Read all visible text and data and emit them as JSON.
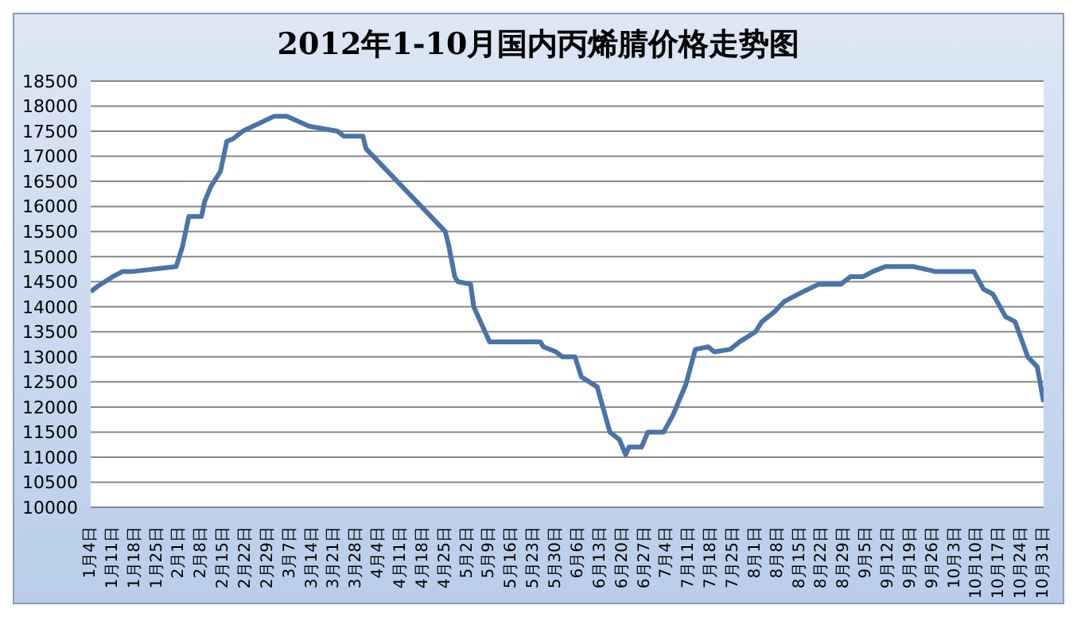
{
  "chart_data": {
    "type": "line",
    "title": "2012年1-10月国内丙烯腈价格走势图",
    "x": [
      "2012-01-04",
      "2012-01-06",
      "2012-01-11",
      "2012-01-14",
      "2012-01-17",
      "2012-01-31",
      "2012-02-02",
      "2012-02-04",
      "2012-02-08",
      "2012-02-09",
      "2012-02-11",
      "2012-02-14",
      "2012-02-16",
      "2012-02-18",
      "2012-02-21",
      "2012-03-02",
      "2012-03-06",
      "2012-03-13",
      "2012-03-22",
      "2012-03-24",
      "2012-03-30",
      "2012-03-31",
      "2012-04-25",
      "2012-04-26",
      "2012-04-28",
      "2012-04-29",
      "2012-05-03",
      "2012-05-04",
      "2012-05-09",
      "2012-05-25",
      "2012-05-26",
      "2012-05-30",
      "2012-06-01",
      "2012-06-05",
      "2012-06-07",
      "2012-06-12",
      "2012-06-16",
      "2012-06-19",
      "2012-06-21",
      "2012-06-22",
      "2012-06-26",
      "2012-06-28",
      "2012-07-03",
      "2012-07-06",
      "2012-07-10",
      "2012-07-13",
      "2012-07-17",
      "2012-07-19",
      "2012-07-24",
      "2012-07-27",
      "2012-08-01",
      "2012-08-03",
      "2012-08-07",
      "2012-08-10",
      "2012-08-16",
      "2012-08-21",
      "2012-08-28",
      "2012-08-31",
      "2012-09-04",
      "2012-09-07",
      "2012-09-11",
      "2012-09-20",
      "2012-09-27",
      "2012-10-09",
      "2012-10-12",
      "2012-10-15",
      "2012-10-19",
      "2012-10-22",
      "2012-10-26",
      "2012-10-29",
      "2012-10-31"
    ],
    "series": [
      {
        "color": "#4a74a8",
        "values": [
          14300,
          14400,
          14600,
          14700,
          14700,
          14800,
          15200,
          15800,
          15800,
          16100,
          16400,
          16700,
          17300,
          17350,
          17500,
          17800,
          17800,
          17600,
          17500,
          17400,
          17400,
          17150,
          15500,
          15250,
          14600,
          14500,
          14450,
          14000,
          13300,
          13300,
          13200,
          13100,
          13000,
          13000,
          12600,
          12400,
          11500,
          11350,
          11050,
          11200,
          11200,
          11500,
          11500,
          11850,
          12450,
          13150,
          13200,
          13100,
          13150,
          13300,
          13500,
          13700,
          13900,
          14100,
          14300,
          14450,
          14450,
          14600,
          14600,
          14700,
          14800,
          14800,
          14700,
          14700,
          14350,
          14250,
          13800,
          13700,
          13000,
          12800,
          12100
        ]
      }
    ],
    "xlim": [
      "2012-01-04",
      "2012-10-31"
    ],
    "xticks": [
      {
        "value": "2012-01-04",
        "label": "1月4日"
      },
      {
        "value": "2012-01-11",
        "label": "1月11日"
      },
      {
        "value": "2012-01-18",
        "label": "1月18日"
      },
      {
        "value": "2012-01-25",
        "label": "1月25日"
      },
      {
        "value": "2012-02-01",
        "label": "2月1日"
      },
      {
        "value": "2012-02-08",
        "label": "2月8日"
      },
      {
        "value": "2012-02-15",
        "label": "2月15日"
      },
      {
        "value": "2012-02-22",
        "label": "2月22日"
      },
      {
        "value": "2012-02-29",
        "label": "2月29日"
      },
      {
        "value": "2012-03-07",
        "label": "3月7日"
      },
      {
        "value": "2012-03-14",
        "label": "3月14日"
      },
      {
        "value": "2012-03-21",
        "label": "3月21日"
      },
      {
        "value": "2012-03-28",
        "label": "3月28日"
      },
      {
        "value": "2012-04-04",
        "label": "4月4日"
      },
      {
        "value": "2012-04-11",
        "label": "4月11日"
      },
      {
        "value": "2012-04-18",
        "label": "4月18日"
      },
      {
        "value": "2012-04-25",
        "label": "4月25日"
      },
      {
        "value": "2012-05-02",
        "label": "5月2日"
      },
      {
        "value": "2012-05-09",
        "label": "5月9日"
      },
      {
        "value": "2012-05-16",
        "label": "5月16日"
      },
      {
        "value": "2012-05-23",
        "label": "5月23日"
      },
      {
        "value": "2012-05-30",
        "label": "5月30日"
      },
      {
        "value": "2012-06-06",
        "label": "6月6日"
      },
      {
        "value": "2012-06-13",
        "label": "6月13日"
      },
      {
        "value": "2012-06-20",
        "label": "6月20日"
      },
      {
        "value": "2012-06-27",
        "label": "6月27日"
      },
      {
        "value": "2012-07-04",
        "label": "7月4日"
      },
      {
        "value": "2012-07-11",
        "label": "7月11日"
      },
      {
        "value": "2012-07-18",
        "label": "7月18日"
      },
      {
        "value": "2012-07-25",
        "label": "7月25日"
      },
      {
        "value": "2012-08-01",
        "label": "8月1日"
      },
      {
        "value": "2012-08-08",
        "label": "8月8日"
      },
      {
        "value": "2012-08-15",
        "label": "8月15日"
      },
      {
        "value": "2012-08-22",
        "label": "8月22日"
      },
      {
        "value": "2012-08-29",
        "label": "8月29日"
      },
      {
        "value": "2012-09-05",
        "label": "9月5日"
      },
      {
        "value": "2012-09-12",
        "label": "9月12日"
      },
      {
        "value": "2012-09-19",
        "label": "9月19日"
      },
      {
        "value": "2012-09-26",
        "label": "9月26日"
      },
      {
        "value": "2012-10-03",
        "label": "10月3日"
      },
      {
        "value": "2012-10-10",
        "label": "10月10日"
      },
      {
        "value": "2012-10-17",
        "label": "10月17日"
      },
      {
        "value": "2012-10-24",
        "label": "10月24日"
      },
      {
        "value": "2012-10-31",
        "label": "10月31日"
      }
    ],
    "ylim": [
      10000,
      18500
    ],
    "yticks": [
      10000,
      10500,
      11000,
      11500,
      12000,
      12500,
      13000,
      13500,
      14000,
      14500,
      15000,
      15500,
      16000,
      16500,
      17000,
      17500,
      18000,
      18500
    ],
    "grid": "y",
    "legend": false
  }
}
